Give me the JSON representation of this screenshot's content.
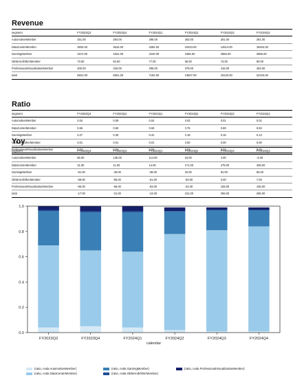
{
  "columns": [
    "segment",
    "FY2023Q3",
    "FY2023Q4",
    "FY2024Q1",
    "FY2024Q2",
    "FY2024Q3",
    "FY2024Q4"
  ],
  "tables": [
    {
      "title": "Revenue",
      "rows": [
        [
          "AutomotiveMember",
          "251.00",
          "294.00",
          "296.00",
          "253.00",
          "261.00",
          "281.00"
        ],
        [
          "DataCenterMember",
          "3833.00",
          "3616.00",
          "4284.00",
          "10323.00",
          "14514.00",
          "18404.00"
        ],
        [
          "GamingMember",
          "1574.00",
          "1831.00",
          "2240.00",
          "2486.00",
          "2856.00",
          "2865.00"
        ],
        [
          "OEMAndOtherMember",
          "73.00",
          "84.00",
          "77.00",
          "66.00",
          "73.00",
          "90.00"
        ],
        [
          "ProfessionalVisualizationMember",
          "200.00",
          "226.00",
          "295.00",
          "379.00",
          "416.00",
          "463.00"
        ],
        [
          "total",
          "5931.00",
          "6051.00",
          "7192.00",
          "13507.00",
          "18120.00",
          "22103.00"
        ]
      ]
    },
    {
      "title": "Ratio",
      "rows": [
        [
          "AutomotiveMember",
          "0.04",
          "0.05",
          "0.04",
          "0.02",
          "0.01",
          "0.01"
        ],
        [
          "DataCenterMember",
          "0.65",
          "0.60",
          "0.60",
          "0.76",
          "0.80",
          "0.83"
        ],
        [
          "GamingMember",
          "0.27",
          "0.30",
          "0.31",
          "0.18",
          "0.16",
          "0.13"
        ],
        [
          "OEMAndOtherMember",
          "0.01",
          "0.01",
          "0.01",
          "0.00",
          "0.00",
          "0.00"
        ],
        [
          "ProfessionalVisualizationMember",
          "0.03",
          "0.04",
          "0.04",
          "0.03",
          "0.02",
          "0.02"
        ]
      ]
    },
    {
      "title": "Yoy",
      "rows": [
        [
          "AutomotiveMember",
          "86.00",
          "135.00",
          "114.00",
          "15.00",
          "4.00",
          "-4.00"
        ],
        [
          "DataCenterMember",
          "31.00",
          "11.00",
          "14.00",
          "171.00",
          "279.00",
          "409.00"
        ],
        [
          "GamingMember",
          "-51.00",
          "-46.00",
          "-38.00",
          "22.00",
          "81.00",
          "56.00"
        ],
        [
          "OEMAndOtherMember",
          "-69.00",
          "-56.00",
          "-51.00",
          "-53.00",
          "0.00",
          "7.00"
        ],
        [
          "ProfessionalVisualizationMember",
          "-65.00",
          "-65.00",
          "-53.00",
          "-24.00",
          "108.00",
          "105.00"
        ],
        [
          "total",
          "-17.00",
          "-21.00",
          "-13.00",
          "101.00",
          "206.00",
          "265.00"
        ]
      ]
    }
  ],
  "chart_data": {
    "type": "bar",
    "stacked": true,
    "xlabel": "calendar",
    "ylabel": "",
    "ylim": [
      0,
      1.0
    ],
    "yticks": [
      "0.0",
      "0.2",
      "0.4",
      "0.6",
      "0.8",
      "1.0"
    ],
    "categories": [
      "FY2023Q3",
      "FY2023Q4",
      "FY2024Q1",
      "FY2024Q2",
      "FY2024Q3",
      "FY2024Q4"
    ],
    "series": [
      {
        "name": "(ratio, nvda AutomotiveMember)",
        "color": "#d6e9f6",
        "values": [
          0.04,
          0.05,
          0.04,
          0.02,
          0.01,
          0.01
        ]
      },
      {
        "name": "(ratio, nvda DataCenterMember)",
        "color": "#9bcbea",
        "values": [
          0.65,
          0.6,
          0.6,
          0.76,
          0.8,
          0.83
        ]
      },
      {
        "name": "(ratio, nvda GamingMember)",
        "color": "#3a7fb5",
        "values": [
          0.27,
          0.3,
          0.31,
          0.18,
          0.16,
          0.13
        ]
      },
      {
        "name": "(ratio, nvda OEMAndOtherMember)",
        "color": "#1f4e96",
        "values": [
          0.01,
          0.01,
          0.01,
          0.0,
          0.0,
          0.0
        ]
      },
      {
        "name": "(ratio, nvda ProfessionalVisualizationMember)",
        "color": "#15206b",
        "values": [
          0.03,
          0.04,
          0.04,
          0.03,
          0.02,
          0.02
        ]
      }
    ],
    "legend_position": "bottom"
  }
}
